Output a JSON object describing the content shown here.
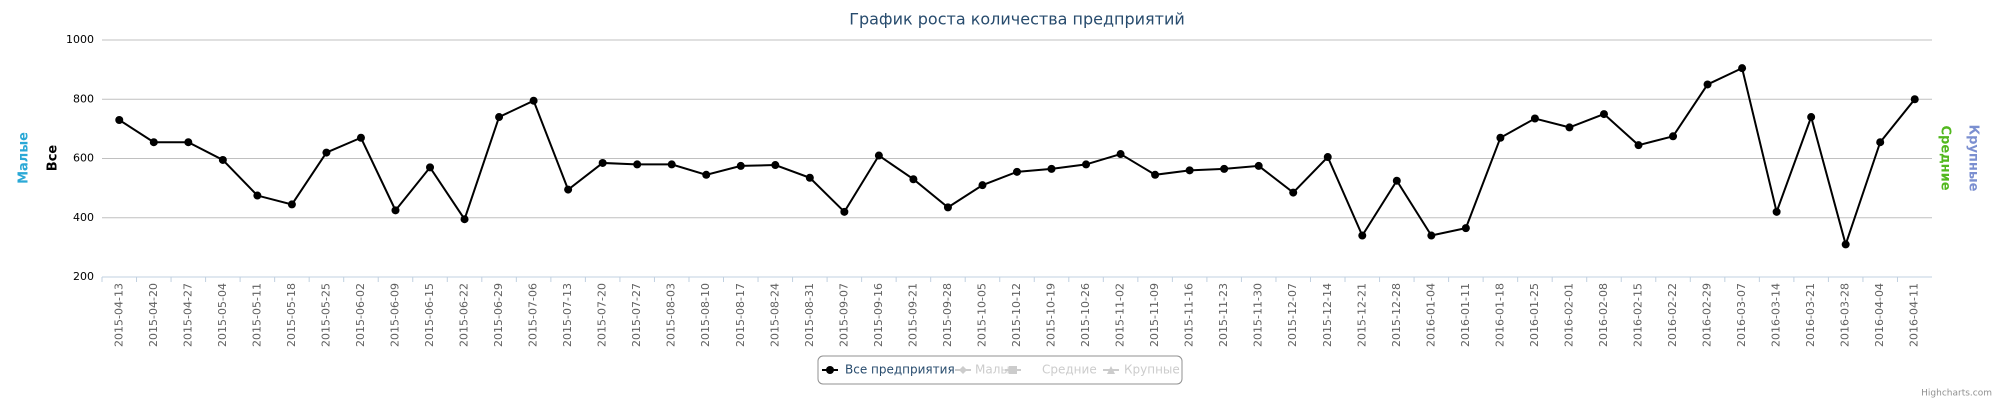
{
  "chart_data": {
    "type": "line",
    "title": "График роста количества предприятий",
    "categories": [
      "2015-04-13",
      "2015-04-20",
      "2015-04-27",
      "2015-05-04",
      "2015-05-11",
      "2015-05-18",
      "2015-05-25",
      "2015-06-02",
      "2015-06-09",
      "2015-06-15",
      "2015-06-22",
      "2015-06-29",
      "2015-07-06",
      "2015-07-13",
      "2015-07-20",
      "2015-07-27",
      "2015-08-03",
      "2015-08-10",
      "2015-08-17",
      "2015-08-24",
      "2015-08-31",
      "2015-09-07",
      "2015-09-16",
      "2015-09-21",
      "2015-09-28",
      "2015-10-05",
      "2015-10-12",
      "2015-10-19",
      "2015-10-26",
      "2015-11-02",
      "2015-11-09",
      "2015-11-16",
      "2015-11-23",
      "2015-11-30",
      "2015-12-07",
      "2015-12-14",
      "2015-12-21",
      "2015-12-28",
      "2016-01-04",
      "2016-01-11",
      "2016-01-18",
      "2016-01-25",
      "2016-02-01",
      "2016-02-08",
      "2016-02-15",
      "2016-02-22",
      "2016-02-29",
      "2016-03-07",
      "2016-03-14",
      "2016-03-21",
      "2016-03-28",
      "2016-04-04",
      "2016-04-11"
    ],
    "series": [
      {
        "name": "Все предприятия",
        "color": "#000000",
        "values": [
          730,
          655,
          655,
          595,
          475,
          445,
          620,
          670,
          425,
          570,
          395,
          740,
          795,
          495,
          585,
          580,
          580,
          545,
          575,
          578,
          535,
          420,
          610,
          530,
          435,
          510,
          555,
          565,
          580,
          615,
          545,
          560,
          565,
          575,
          485,
          605,
          340,
          525,
          340,
          365,
          670,
          735,
          705,
          750,
          645,
          675,
          850,
          905,
          420,
          740,
          310,
          655,
          800
        ]
      }
    ],
    "hidden_legend_items": [
      "Малые",
      "Средние",
      "Крупные"
    ],
    "axis_titles_left": [
      {
        "text": "Малые",
        "color": "#2aa8d6"
      },
      {
        "text": "Все",
        "color": "#000000"
      }
    ],
    "axis_titles_right": [
      {
        "text": "Средние",
        "color": "#52b81e"
      },
      {
        "text": "Крупные",
        "color": "#7b8fd0"
      }
    ],
    "ylim": [
      200,
      1000
    ],
    "yticks": [
      200,
      400,
      600,
      800,
      1000
    ],
    "grid": true,
    "credits": "Highcharts.com"
  }
}
